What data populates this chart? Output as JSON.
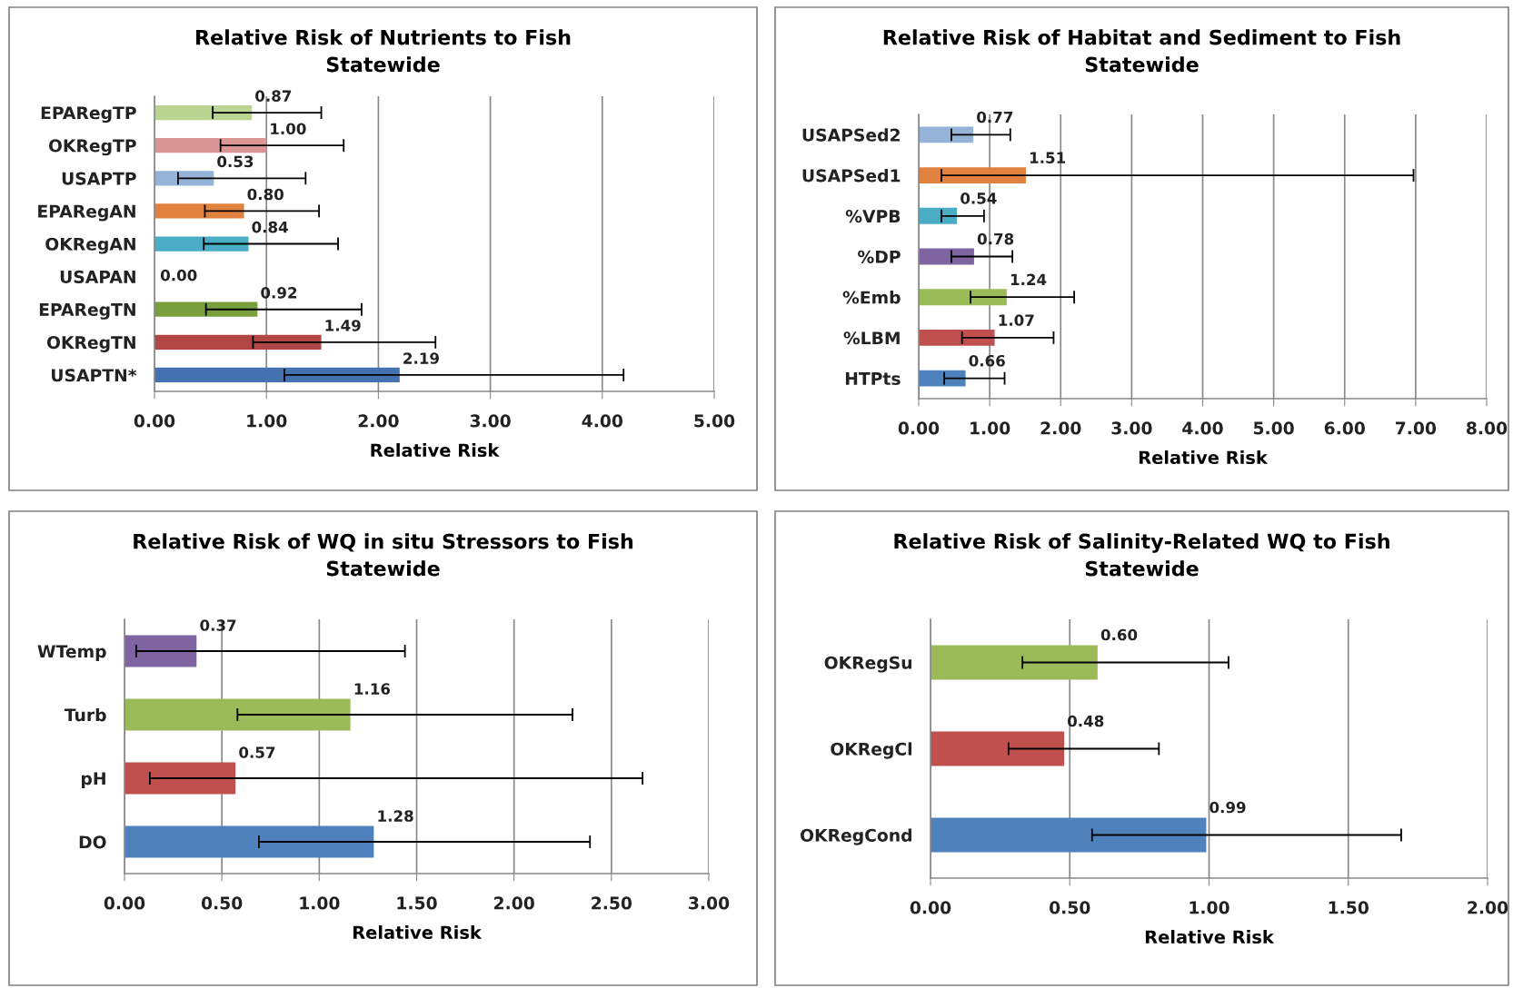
{
  "chart_data": [
    {
      "type": "bar",
      "orientation": "horizontal",
      "title": "Relative Risk of Nutrients to Fish\nStatewide",
      "xlabel": "Relative Risk",
      "categories": [
        "EPARegTP",
        "OKRegTP",
        "USAPTP",
        "EPARegAN",
        "OKRegAN",
        "USAPAN",
        "EPARegTN",
        "OKRegTN",
        "USAPTN*"
      ],
      "values": [
        0.87,
        1.0,
        0.53,
        0.8,
        0.84,
        0.0,
        0.92,
        1.49,
        2.19
      ],
      "colors": [
        "#b9d48e",
        "#d99694",
        "#95b3d7",
        "#e0823d",
        "#4bacc6",
        "#8064a2",
        "#77a03c",
        "#b04744",
        "#4472b0"
      ],
      "errors": [
        [
          0.52,
          1.49
        ],
        [
          0.59,
          1.69
        ],
        [
          0.21,
          1.35
        ],
        [
          0.45,
          1.47
        ],
        [
          0.44,
          1.64
        ],
        null,
        [
          0.46,
          1.85
        ],
        [
          0.88,
          2.51
        ],
        [
          1.16,
          4.19
        ]
      ],
      "xlim": [
        0,
        5
      ],
      "xticks": [
        {
          "value": 0,
          "label": "0.00"
        },
        {
          "value": 1,
          "label": "1.00"
        },
        {
          "value": 2,
          "label": "2.00"
        },
        {
          "value": 3,
          "label": "3.00"
        },
        {
          "value": 4,
          "label": "4.00"
        },
        {
          "value": 5,
          "label": "5.00"
        }
      ],
      "grid": "x",
      "value_labels": [
        "0.87",
        "1.00",
        "0.53",
        "0.80",
        "0.84",
        "0.00",
        "0.92",
        "1.49",
        "2.19"
      ]
    },
    {
      "type": "bar",
      "orientation": "horizontal",
      "title": "Relative Risk of Habitat and Sediment to Fish\nStatewide",
      "xlabel": "Relative Risk",
      "categories": [
        "USAPSed2",
        "USAPSed1",
        "%VPB",
        "%DP",
        "%Emb",
        "%LBM",
        "HTPts"
      ],
      "values": [
        0.77,
        1.51,
        0.54,
        0.78,
        1.24,
        1.07,
        0.66
      ],
      "colors": [
        "#95b3d7",
        "#e0823d",
        "#4bacc6",
        "#8064a2",
        "#9bbb59",
        "#c0504d",
        "#4f81bd"
      ],
      "errors": [
        [
          0.46,
          1.29
        ],
        [
          0.32,
          6.97
        ],
        [
          0.32,
          0.92
        ],
        [
          0.46,
          1.32
        ],
        [
          0.73,
          2.19
        ],
        [
          0.61,
          1.9
        ],
        [
          0.36,
          1.21
        ]
      ],
      "xlim": [
        0,
        8
      ],
      "xticks": [
        {
          "value": 0,
          "label": "0.00"
        },
        {
          "value": 1,
          "label": "1.00"
        },
        {
          "value": 2,
          "label": "2.00"
        },
        {
          "value": 3,
          "label": "3.00"
        },
        {
          "value": 4,
          "label": "4.00"
        },
        {
          "value": 5,
          "label": "5.00"
        },
        {
          "value": 6,
          "label": "6.00"
        },
        {
          "value": 7,
          "label": "7.00"
        },
        {
          "value": 8,
          "label": "8.00"
        }
      ],
      "grid": "x",
      "value_labels": [
        "0.77",
        "1.51",
        "0.54",
        "0.78",
        "1.24",
        "1.07",
        "0.66"
      ]
    },
    {
      "type": "bar",
      "orientation": "horizontal",
      "title": "Relative Risk of WQ in situ Stressors to Fish\nStatewide",
      "xlabel": "Relative Risk",
      "categories": [
        "WTemp",
        "Turb",
        "pH",
        "DO"
      ],
      "values": [
        0.37,
        1.16,
        0.57,
        1.28
      ],
      "colors": [
        "#8064a2",
        "#9bbb59",
        "#c0504d",
        "#4f81bd"
      ],
      "errors": [
        [
          0.06,
          1.44
        ],
        [
          0.58,
          2.3
        ],
        [
          0.13,
          2.66
        ],
        [
          0.69,
          2.39
        ]
      ],
      "xlim": [
        0,
        3
      ],
      "xticks": [
        {
          "value": 0,
          "label": "0.00"
        },
        {
          "value": 0.5,
          "label": "0.50"
        },
        {
          "value": 1,
          "label": "1.00"
        },
        {
          "value": 1.5,
          "label": "1.50"
        },
        {
          "value": 2,
          "label": "2.00"
        },
        {
          "value": 2.5,
          "label": "2.50"
        },
        {
          "value": 3,
          "label": "3.00"
        }
      ],
      "grid": "x",
      "value_labels": [
        "0.37",
        "1.16",
        "0.57",
        "1.28"
      ]
    },
    {
      "type": "bar",
      "orientation": "horizontal",
      "title": "Relative Risk of Salinity-Related WQ to Fish\nStatewide",
      "xlabel": "Relative Risk",
      "categories": [
        "OKRegSu",
        "OKRegCl",
        "OKRegCond"
      ],
      "values": [
        0.6,
        0.48,
        0.99
      ],
      "colors": [
        "#9bbb59",
        "#c0504d",
        "#4f81bd"
      ],
      "errors": [
        [
          0.33,
          1.07
        ],
        [
          0.28,
          0.82
        ],
        [
          0.58,
          1.69
        ]
      ],
      "xlim": [
        0,
        2
      ],
      "xticks": [
        {
          "value": 0,
          "label": "0.00"
        },
        {
          "value": 0.5,
          "label": "0.50"
        },
        {
          "value": 1,
          "label": "1.00"
        },
        {
          "value": 1.5,
          "label": "1.50"
        },
        {
          "value": 2,
          "label": "2.00"
        }
      ],
      "grid": "x",
      "value_labels": [
        "0.60",
        "0.48",
        "0.99"
      ]
    }
  ]
}
